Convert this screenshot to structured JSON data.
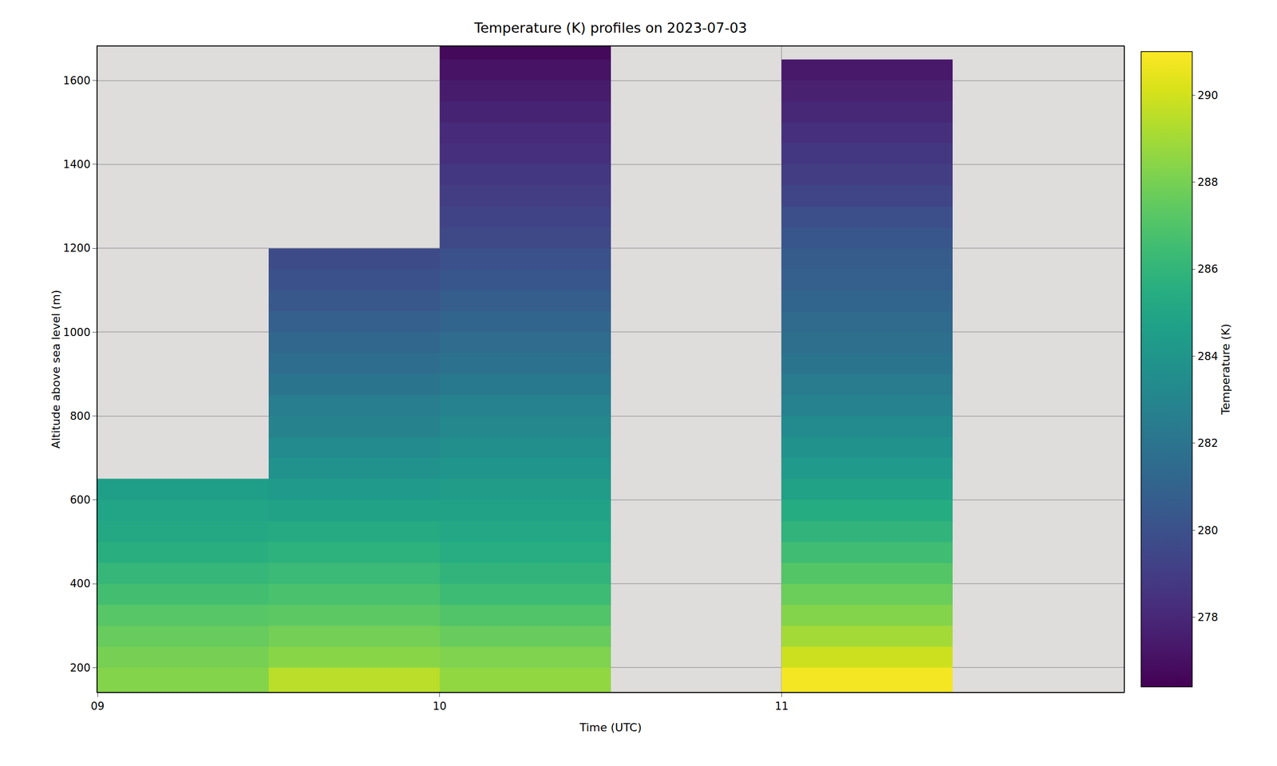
{
  "chart_data": {
    "type": "heatmap",
    "title": "Temperature (K) profiles on 2023-07-03",
    "x_label": "Time (UTC)",
    "y_label": "Altitude above sea level (m)",
    "x_edges": [
      9,
      9.5,
      10,
      10.5,
      11,
      11.5,
      12
    ],
    "y_edges": [
      140,
      200,
      250,
      300,
      350,
      400,
      450,
      500,
      550,
      600,
      650,
      700,
      750,
      800,
      850,
      900,
      950,
      1000,
      1050,
      1100,
      1150,
      1200,
      1250,
      1300,
      1350,
      1400,
      1450,
      1500,
      1550,
      1600,
      1650,
      1700
    ],
    "values": [
      [
        288.3,
        288.0,
        287.6,
        287.2,
        286.6,
        286.1,
        285.6,
        285.2,
        284.9,
        284.6
      ],
      [
        289.5,
        288.4,
        287.9,
        287.3,
        286.8,
        286.3,
        285.8,
        285.3,
        284.8,
        284.3,
        283.8,
        283.3,
        282.9,
        282.5,
        282.0,
        281.6,
        281.2,
        280.8,
        280.4,
        280.0,
        279.7
      ],
      [
        288.6,
        288.2,
        287.6,
        287.0,
        286.4,
        285.9,
        285.5,
        285.1,
        284.8,
        284.4,
        284.0,
        283.6,
        283.2,
        282.8,
        282.3,
        281.9,
        281.5,
        281.1,
        280.7,
        280.3,
        280.0,
        279.6,
        279.3,
        279.0,
        278.7,
        278.4,
        278.1,
        277.8,
        277.5,
        277.1,
        276.7
      ],
      [],
      [
        290.8,
        289.9,
        289.0,
        288.3,
        287.7,
        287.1,
        286.5,
        285.9,
        285.4,
        284.8,
        284.3,
        283.8,
        283.3,
        282.8,
        282.4,
        282.0,
        281.7,
        281.4,
        281.1,
        280.8,
        280.6,
        280.3,
        279.9,
        279.4,
        279.0,
        278.7,
        278.4,
        278.0,
        277.7,
        277.3
      ],
      []
    ],
    "xlim": [
      9,
      12
    ],
    "xticks": [
      {
        "value": 9,
        "label": "09"
      },
      {
        "value": 10,
        "label": "10"
      },
      {
        "value": 11,
        "label": "11"
      }
    ],
    "ylim": [
      142,
      1681
    ],
    "yticks": [
      200,
      400,
      600,
      800,
      1000,
      1200,
      1400,
      1600
    ],
    "grid": true,
    "colorbar": {
      "title": "Temperature (K)",
      "range": [
        276.4,
        291
      ],
      "ticks": [
        278,
        280,
        282,
        284,
        286,
        288,
        290
      ]
    },
    "color": "Viridis"
  }
}
